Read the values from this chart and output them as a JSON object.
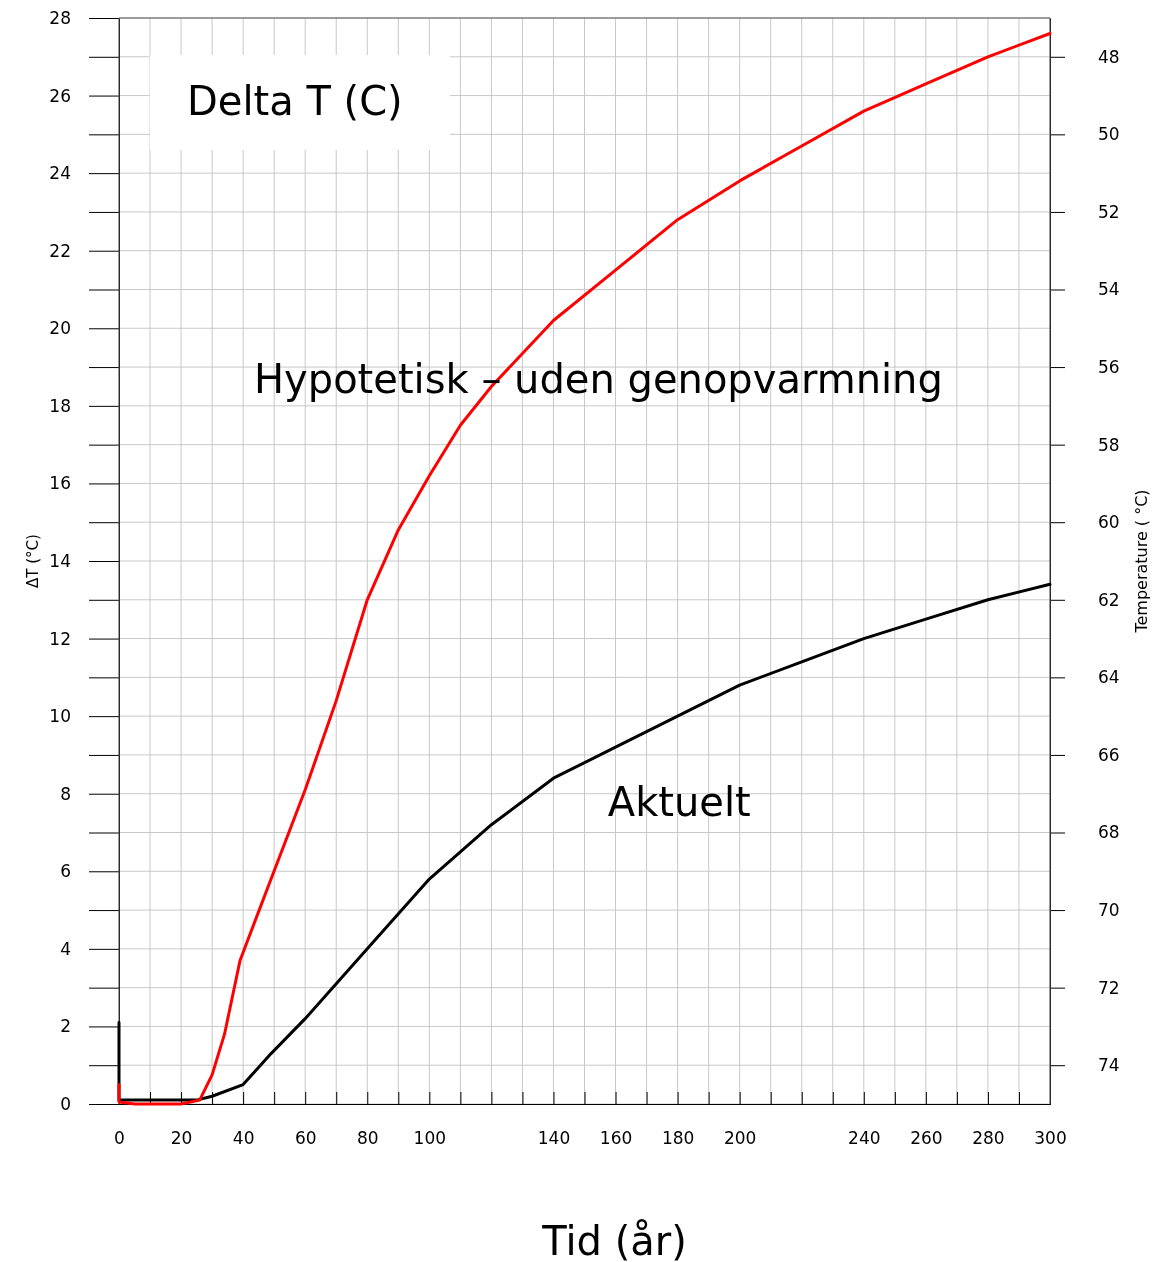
{
  "chart_data": {
    "type": "line",
    "title": "Delta T (C)",
    "xlabel": "Tid (år)",
    "ylabel": "ΔT (°C)",
    "y2label": "Temperature ( °C)",
    "xlim": [
      0,
      300
    ],
    "ylim": [
      0,
      28
    ],
    "y2lim": [
      75,
      47
    ],
    "xticks": [
      0,
      {
        "value": 10,
        "label": null
      },
      20,
      {
        "value": 30,
        "label": null
      },
      40,
      {
        "value": 50,
        "label": null
      },
      60,
      {
        "value": 70,
        "label": null
      },
      80,
      {
        "value": 90,
        "label": null
      },
      100,
      {
        "value": 110,
        "label": null
      },
      {
        "value": 120,
        "label": null
      },
      {
        "value": 130,
        "label": null
      },
      140,
      {
        "value": 150,
        "label": null
      },
      160,
      {
        "value": 170,
        "label": null
      },
      180,
      {
        "value": 190,
        "label": null
      },
      200,
      {
        "value": 210,
        "label": null
      },
      {
        "value": 220,
        "label": null
      },
      {
        "value": 230,
        "label": null
      },
      240,
      {
        "value": 250,
        "label": null
      },
      260,
      {
        "value": 270,
        "label": null
      },
      280,
      {
        "value": 290,
        "label": null
      },
      300
    ],
    "yticks": [
      0,
      {
        "value": 1,
        "label": null
      },
      2,
      {
        "value": 3,
        "label": null
      },
      4,
      {
        "value": 5,
        "label": null
      },
      6,
      {
        "value": 7,
        "label": null
      },
      8,
      {
        "value": 9,
        "label": null
      },
      10,
      {
        "value": 11,
        "label": null
      },
      12,
      {
        "value": 13,
        "label": null
      },
      14,
      {
        "value": 15,
        "label": null
      },
      16,
      {
        "value": 17,
        "label": null
      },
      18,
      {
        "value": 19,
        "label": null
      },
      20,
      {
        "value": 21,
        "label": null
      },
      22,
      {
        "value": 23,
        "label": null
      },
      24,
      {
        "value": 25,
        "label": null
      },
      26,
      {
        "value": 27,
        "label": null
      },
      28
    ],
    "y2ticks": [
      48,
      50,
      52,
      54,
      56,
      58,
      60,
      62,
      64,
      66,
      68,
      70,
      72,
      74
    ],
    "grid": true,
    "line_style": "solid",
    "marker": "none",
    "series": [
      {
        "name": "Hypotetisk – uden genopvarmning",
        "color": "#ff0000",
        "x": [
          0,
          0,
          5,
          10,
          20,
          26,
          30,
          34,
          39,
          49,
          60,
          70,
          80,
          90,
          100,
          110,
          120,
          140,
          160,
          180,
          200,
          220,
          240,
          260,
          280,
          300
        ],
        "values": [
          0.5,
          0.05,
          0,
          0,
          0,
          0.1,
          0.75,
          1.8,
          3.7,
          5.8,
          8.1,
          10.4,
          13.0,
          14.8,
          16.2,
          17.5,
          18.5,
          20.2,
          21.5,
          22.8,
          23.8,
          24.7,
          25.6,
          26.3,
          27.0,
          27.6
        ]
      },
      {
        "name": "Aktuelt",
        "color": "#000000",
        "x": [
          0,
          0,
          10,
          20,
          25,
          30,
          40,
          49,
          60,
          70,
          80,
          100,
          120,
          140,
          160,
          180,
          200,
          220,
          240,
          260,
          280,
          300
        ],
        "values": [
          2.1,
          0.1,
          0.1,
          0.1,
          0.1,
          0.2,
          0.5,
          1.3,
          2.2,
          3.1,
          4.0,
          5.8,
          7.2,
          8.4,
          9.2,
          10.0,
          10.8,
          11.4,
          12.0,
          12.5,
          13.0,
          13.4
        ]
      }
    ]
  }
}
